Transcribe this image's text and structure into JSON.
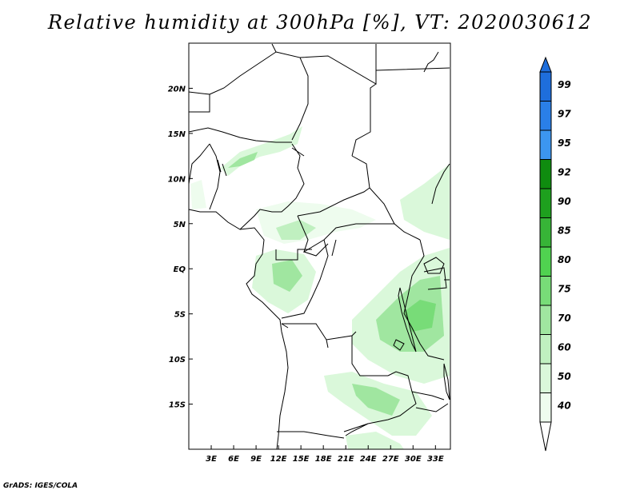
{
  "title": "Relative humidity at 300hPa [%], VT: 2020030612",
  "footer": "GrADS: IGES/COLA",
  "map": {
    "lon_range": [
      0,
      35
    ],
    "lat_range": [
      -20,
      25
    ],
    "lat_ticks": [
      {
        "value": 20,
        "label": "20N"
      },
      {
        "value": 15,
        "label": "15N"
      },
      {
        "value": 10,
        "label": "10N"
      },
      {
        "value": 5,
        "label": "5N"
      },
      {
        "value": 0,
        "label": "EQ"
      },
      {
        "value": -5,
        "label": "5S"
      },
      {
        "value": -10,
        "label": "10S"
      },
      {
        "value": -15,
        "label": "15S"
      }
    ],
    "lon_ticks": [
      {
        "value": 3,
        "label": "3E"
      },
      {
        "value": 6,
        "label": "6E"
      },
      {
        "value": 9,
        "label": "9E"
      },
      {
        "value": 12,
        "label": "12E"
      },
      {
        "value": 15,
        "label": "15E"
      },
      {
        "value": 18,
        "label": "18E"
      },
      {
        "value": 21,
        "label": "21E"
      },
      {
        "value": 24,
        "label": "24E"
      },
      {
        "value": 27,
        "label": "27E"
      },
      {
        "value": 30,
        "label": "30E"
      },
      {
        "value": 33,
        "label": "33E"
      }
    ]
  },
  "colorbar": {
    "levels": [
      {
        "label": "99",
        "color": "#1e6edc"
      },
      {
        "label": "97",
        "color": "#2a7fe8"
      },
      {
        "label": "95",
        "color": "#3c96f0"
      },
      {
        "label": "92",
        "color": "#0f8c0f"
      },
      {
        "label": "90",
        "color": "#1ea01e"
      },
      {
        "label": "85",
        "color": "#37b437"
      },
      {
        "label": "80",
        "color": "#50d250"
      },
      {
        "label": "75",
        "color": "#78dc78"
      },
      {
        "label": "70",
        "color": "#a0e6a0"
      },
      {
        "label": "60",
        "color": "#c0f0c0"
      },
      {
        "label": "50",
        "color": "#daf8da"
      },
      {
        "label": "40",
        "color": "#eefcee"
      }
    ],
    "top_arrow_color": "#1e6edc",
    "bottom_arrow_color": "#ffffff"
  }
}
